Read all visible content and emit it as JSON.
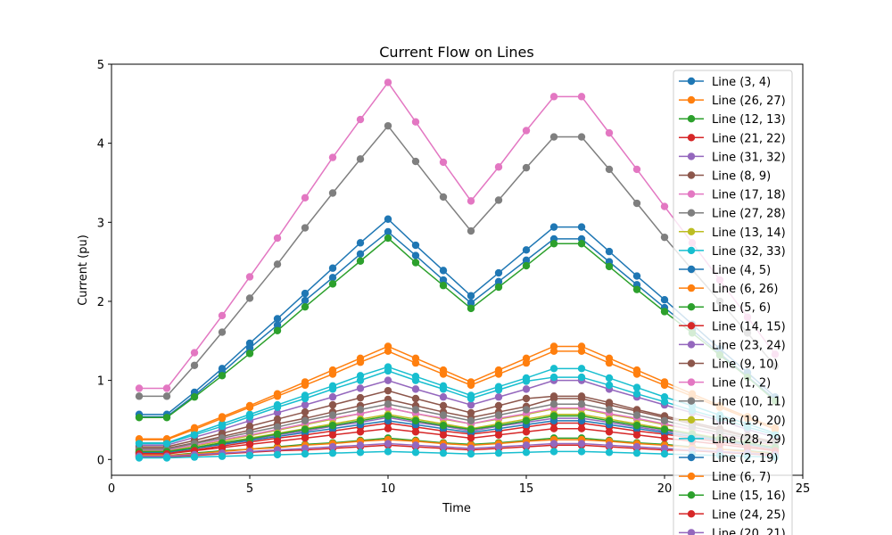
{
  "chart_data": {
    "type": "line",
    "title": "Current Flow on Lines",
    "xlabel": "Time",
    "ylabel": "Current (pu)",
    "xlim": [
      0,
      25
    ],
    "ylim": [
      -0.2,
      5
    ],
    "xticks": [
      0,
      5,
      10,
      15,
      20,
      25
    ],
    "yticks": [
      0,
      1,
      2,
      3,
      4,
      5
    ],
    "grid": false,
    "legend_position": "upper right",
    "marker": "circle",
    "x": [
      1,
      2,
      3,
      4,
      5,
      6,
      7,
      8,
      9,
      10,
      11,
      12,
      13,
      14,
      15,
      16,
      17,
      18,
      19,
      20,
      21,
      22,
      23,
      24
    ],
    "series": [
      {
        "name": "Line (3, 4)",
        "color": "#1f77b4",
        "values": [
          0.57,
          0.57,
          0.85,
          1.15,
          1.47,
          1.78,
          2.1,
          2.42,
          2.74,
          3.04,
          2.71,
          2.39,
          2.07,
          2.36,
          2.65,
          2.94,
          2.94,
          2.63,
          2.32,
          2.02,
          1.71,
          1.4,
          1.1,
          0.79
        ]
      },
      {
        "name": "Line (26, 27)",
        "color": "#ff7f0e",
        "values": [
          0.26,
          0.26,
          0.4,
          0.54,
          0.68,
          0.83,
          0.98,
          1.13,
          1.28,
          1.43,
          1.28,
          1.13,
          0.98,
          1.13,
          1.28,
          1.43,
          1.43,
          1.28,
          1.13,
          0.98,
          0.83,
          0.68,
          0.54,
          0.4
        ]
      },
      {
        "name": "Line (12, 13)",
        "color": "#2ca02c",
        "values": [
          0.05,
          0.05,
          0.08,
          0.11,
          0.13,
          0.16,
          0.19,
          0.21,
          0.24,
          0.27,
          0.24,
          0.21,
          0.19,
          0.21,
          0.24,
          0.27,
          0.27,
          0.24,
          0.21,
          0.19,
          0.16,
          0.13,
          0.11,
          0.08
        ]
      },
      {
        "name": "Line (21, 22)",
        "color": "#d62728",
        "values": [
          0.03,
          0.03,
          0.05,
          0.07,
          0.09,
          0.11,
          0.12,
          0.14,
          0.16,
          0.18,
          0.16,
          0.14,
          0.12,
          0.14,
          0.16,
          0.18,
          0.18,
          0.16,
          0.14,
          0.12,
          0.11,
          0.09,
          0.07,
          0.05
        ]
      },
      {
        "name": "Line (31, 32)",
        "color": "#9467bd",
        "values": [
          0.18,
          0.18,
          0.28,
          0.38,
          0.49,
          0.59,
          0.69,
          0.79,
          0.9,
          1.0,
          0.89,
          0.79,
          0.69,
          0.79,
          0.89,
          1.0,
          1.0,
          0.89,
          0.79,
          0.69,
          0.59,
          0.49,
          0.38,
          0.28
        ]
      },
      {
        "name": "Line (8, 9)",
        "color": "#8c564b",
        "values": [
          0.16,
          0.16,
          0.24,
          0.33,
          0.42,
          0.51,
          0.6,
          0.69,
          0.78,
          0.87,
          0.77,
          0.68,
          0.59,
          0.68,
          0.77,
          0.8,
          0.8,
          0.72,
          0.63,
          0.55,
          0.47,
          0.39,
          0.3,
          0.22
        ]
      },
      {
        "name": "Line (17, 18)",
        "color": "#e377c2",
        "values": [
          0.9,
          0.9,
          1.35,
          1.82,
          2.31,
          2.8,
          3.31,
          3.82,
          4.3,
          4.77,
          4.27,
          3.76,
          3.27,
          3.7,
          4.16,
          4.59,
          4.59,
          4.13,
          3.67,
          3.2,
          2.74,
          2.27,
          1.8,
          1.33
        ]
      },
      {
        "name": "Line (27, 28)",
        "color": "#7f7f7f",
        "values": [
          0.8,
          0.8,
          1.19,
          1.61,
          2.04,
          2.47,
          2.93,
          3.37,
          3.8,
          4.22,
          3.77,
          3.32,
          2.89,
          3.28,
          3.69,
          4.08,
          4.08,
          3.67,
          3.24,
          2.81,
          2.4,
          2.0,
          1.6,
          1.18
        ]
      },
      {
        "name": "Line (13, 14)",
        "color": "#bcbd22",
        "values": [
          0.11,
          0.11,
          0.17,
          0.23,
          0.3,
          0.37,
          0.44,
          0.51,
          0.58,
          0.65,
          0.58,
          0.51,
          0.45,
          0.51,
          0.57,
          0.64,
          0.64,
          0.57,
          0.51,
          0.44,
          0.38,
          0.31,
          0.24,
          0.17
        ]
      },
      {
        "name": "Line (32, 33)",
        "color": "#17becf",
        "values": [
          0.21,
          0.21,
          0.33,
          0.45,
          0.57,
          0.69,
          0.81,
          0.93,
          1.06,
          1.17,
          1.05,
          0.93,
          0.81,
          0.92,
          1.03,
          1.15,
          1.15,
          1.03,
          0.91,
          0.79,
          0.68,
          0.56,
          0.45,
          0.33
        ]
      },
      {
        "name": "Line (4, 5)",
        "color": "#1f77b4",
        "values": [
          0.54,
          0.54,
          0.81,
          1.1,
          1.41,
          1.7,
          2.01,
          2.3,
          2.6,
          2.88,
          2.58,
          2.27,
          1.98,
          2.25,
          2.52,
          2.79,
          2.79,
          2.5,
          2.21,
          1.92,
          1.64,
          1.34,
          1.05,
          0.76
        ]
      },
      {
        "name": "Line (6, 26)",
        "color": "#ff7f0e",
        "values": [
          0.25,
          0.25,
          0.38,
          0.52,
          0.66,
          0.8,
          0.94,
          1.08,
          1.23,
          1.37,
          1.22,
          1.08,
          0.94,
          1.08,
          1.22,
          1.37,
          1.37,
          1.22,
          1.08,
          0.94,
          0.8,
          0.66,
          0.52,
          0.38
        ]
      },
      {
        "name": "Line (5, 6)",
        "color": "#2ca02c",
        "values": [
          0.53,
          0.53,
          0.79,
          1.06,
          1.34,
          1.63,
          1.93,
          2.22,
          2.51,
          2.8,
          2.49,
          2.2,
          1.91,
          2.18,
          2.45,
          2.73,
          2.73,
          2.44,
          2.15,
          1.87,
          1.6,
          1.32,
          1.04,
          0.74
        ]
      },
      {
        "name": "Line (14, 15)",
        "color": "#d62728",
        "values": [
          0.08,
          0.08,
          0.12,
          0.17,
          0.22,
          0.27,
          0.31,
          0.36,
          0.41,
          0.46,
          0.41,
          0.36,
          0.32,
          0.36,
          0.41,
          0.46,
          0.46,
          0.41,
          0.36,
          0.32,
          0.27,
          0.22,
          0.17,
          0.12
        ]
      },
      {
        "name": "Line (23, 24)",
        "color": "#9467bd",
        "values": [
          0.09,
          0.09,
          0.14,
          0.2,
          0.25,
          0.31,
          0.36,
          0.42,
          0.47,
          0.53,
          0.47,
          0.42,
          0.36,
          0.42,
          0.47,
          0.52,
          0.52,
          0.47,
          0.41,
          0.36,
          0.31,
          0.25,
          0.2,
          0.14
        ]
      },
      {
        "name": "Line (9, 10)",
        "color": "#8c564b",
        "values": [
          0.14,
          0.14,
          0.21,
          0.29,
          0.37,
          0.45,
          0.52,
          0.6,
          0.68,
          0.76,
          0.68,
          0.6,
          0.53,
          0.6,
          0.67,
          0.77,
          0.77,
          0.69,
          0.61,
          0.53,
          0.45,
          0.37,
          0.29,
          0.21
        ]
      },
      {
        "name": "Line (1, 2)",
        "color": "#e377c2",
        "values": [
          0.12,
          0.12,
          0.18,
          0.25,
          0.31,
          0.38,
          0.45,
          0.52,
          0.58,
          0.65,
          0.58,
          0.52,
          0.45,
          0.52,
          0.58,
          0.65,
          0.65,
          0.58,
          0.52,
          0.45,
          0.38,
          0.31,
          0.25,
          0.18
        ]
      },
      {
        "name": "Line (10, 11)",
        "color": "#7f7f7f",
        "values": [
          0.13,
          0.13,
          0.2,
          0.27,
          0.34,
          0.41,
          0.49,
          0.56,
          0.63,
          0.7,
          0.63,
          0.56,
          0.49,
          0.56,
          0.63,
          0.7,
          0.7,
          0.63,
          0.56,
          0.49,
          0.41,
          0.34,
          0.27,
          0.2
        ]
      },
      {
        "name": "Line (19, 20)",
        "color": "#bcbd22",
        "values": [
          0.1,
          0.1,
          0.15,
          0.21,
          0.27,
          0.33,
          0.39,
          0.45,
          0.51,
          0.57,
          0.51,
          0.45,
          0.39,
          0.45,
          0.51,
          0.57,
          0.57,
          0.51,
          0.45,
          0.39,
          0.33,
          0.27,
          0.21,
          0.15
        ]
      },
      {
        "name": "Line (28, 29)",
        "color": "#17becf",
        "values": [
          0.2,
          0.2,
          0.31,
          0.42,
          0.54,
          0.66,
          0.77,
          0.89,
          1.0,
          1.12,
          1.0,
          0.89,
          0.77,
          0.88,
          0.99,
          1.04,
          1.04,
          0.94,
          0.83,
          0.73,
          0.62,
          0.52,
          0.41,
          0.31
        ]
      },
      {
        "name": "Line (2, 19)",
        "color": "#1f77b4",
        "values": [
          0.09,
          0.09,
          0.14,
          0.19,
          0.24,
          0.29,
          0.34,
          0.39,
          0.44,
          0.49,
          0.44,
          0.39,
          0.34,
          0.39,
          0.44,
          0.49,
          0.49,
          0.44,
          0.39,
          0.34,
          0.29,
          0.24,
          0.19,
          0.14
        ]
      },
      {
        "name": "Line (6, 7)",
        "color": "#ff7f0e",
        "values": [
          0.05,
          0.05,
          0.07,
          0.1,
          0.13,
          0.15,
          0.18,
          0.2,
          0.23,
          0.25,
          0.23,
          0.2,
          0.18,
          0.2,
          0.23,
          0.25,
          0.25,
          0.23,
          0.2,
          0.18,
          0.15,
          0.13,
          0.1,
          0.07
        ]
      },
      {
        "name": "Line (15, 16)",
        "color": "#2ca02c",
        "values": [
          0.1,
          0.1,
          0.15,
          0.21,
          0.26,
          0.32,
          0.38,
          0.43,
          0.49,
          0.55,
          0.49,
          0.43,
          0.38,
          0.43,
          0.49,
          0.55,
          0.55,
          0.49,
          0.43,
          0.38,
          0.32,
          0.26,
          0.21,
          0.15
        ]
      },
      {
        "name": "Line (24, 25)",
        "color": "#d62728",
        "values": [
          0.07,
          0.07,
          0.11,
          0.15,
          0.19,
          0.23,
          0.27,
          0.31,
          0.35,
          0.39,
          0.35,
          0.31,
          0.27,
          0.31,
          0.35,
          0.39,
          0.39,
          0.35,
          0.31,
          0.27,
          0.23,
          0.19,
          0.15,
          0.11
        ]
      },
      {
        "name": "Line (20, 21)",
        "color": "#9467bd",
        "values": [
          0.04,
          0.04,
          0.06,
          0.08,
          0.1,
          0.12,
          0.14,
          0.16,
          0.18,
          0.2,
          0.18,
          0.16,
          0.14,
          0.16,
          0.18,
          0.2,
          0.2,
          0.18,
          0.16,
          0.14,
          0.12,
          0.1,
          0.08,
          0.06
        ]
      },
      {
        "name": "",
        "color": "#17becf",
        "values": [
          0.02,
          0.02,
          0.03,
          0.04,
          0.05,
          0.06,
          0.07,
          0.08,
          0.09,
          0.1,
          0.09,
          0.08,
          0.07,
          0.08,
          0.09,
          0.1,
          0.1,
          0.09,
          0.08,
          0.07,
          0.06,
          0.05,
          0.04,
          0.03
        ]
      }
    ]
  }
}
